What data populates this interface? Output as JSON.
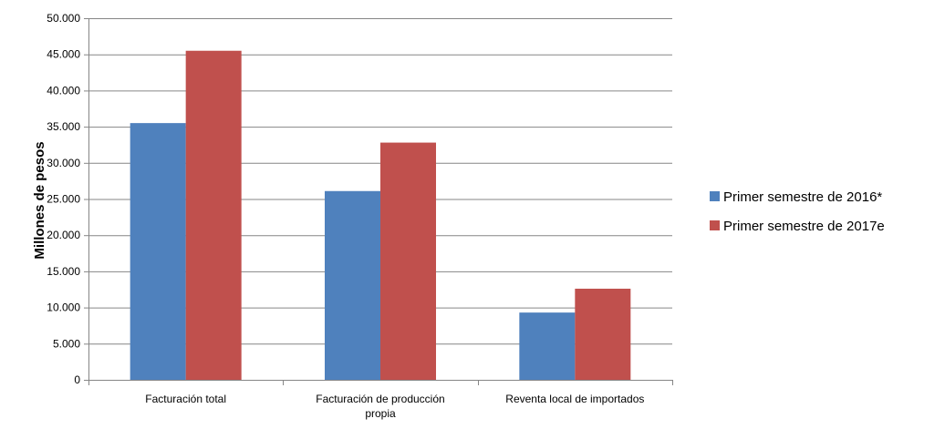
{
  "chart_data": {
    "type": "bar",
    "title": "",
    "xlabel": "",
    "ylabel": "Millones de pesos",
    "categories": [
      "Facturación total",
      "Facturación de producción propia",
      "Reventa local de importados"
    ],
    "category_label_lines": [
      [
        "Facturación total"
      ],
      [
        "Facturación de producción",
        "propia"
      ],
      [
        "Reventa local de importados"
      ]
    ],
    "series": [
      {
        "name": "Primer semestre de 2016*",
        "values": [
          35500,
          26100,
          9300
        ],
        "color": "#4F81BD"
      },
      {
        "name": "Primer semestre de 2017e",
        "values": [
          45500,
          32800,
          12600
        ],
        "color": "#C0504D"
      }
    ],
    "ylim": [
      0,
      50000
    ],
    "yticks": [
      0,
      5000,
      10000,
      15000,
      20000,
      25000,
      30000,
      35000,
      40000,
      45000,
      50000
    ],
    "ytick_labels": [
      "0",
      "5.000",
      "10.000",
      "15.000",
      "20.000",
      "25.000",
      "30.000",
      "35.000",
      "40.000",
      "45.000",
      "50.000"
    ],
    "grid": true,
    "legend_position": "right"
  }
}
